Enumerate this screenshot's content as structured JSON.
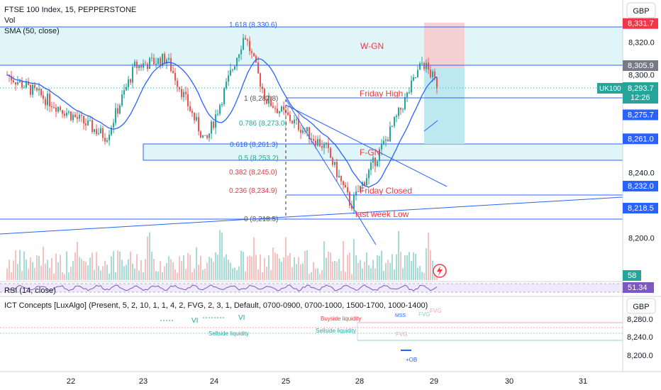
{
  "header": {
    "title": "FTSE 100 Index, 15, PEPPERSTONE",
    "vol_label": "Vol",
    "sma_label": "SMA (50, close)",
    "currency": "GBP"
  },
  "rsi": {
    "label": "RSI (14, close)",
    "values": [
      "58",
      "51.34"
    ]
  },
  "ict": {
    "title": "ICT Concepts [LuxAlgo] (Present, 5, 2, 10, 1, 1, 4, 2, FVG, 2, 3, 1, Default, 0700-0900, 0700-1000, 1500-1700, 1000-1400)",
    "currency": "GBP",
    "labels": [
      "VI",
      "VI",
      "Buyside liquidity",
      "MSS",
      "FVG",
      "FVG",
      "Sellside liquidity",
      "Sellside liquidity",
      "FVG",
      "+OB"
    ],
    "axis": [
      "8,280.0",
      "8,240.0",
      "8,200.0"
    ]
  },
  "symbol_badge": {
    "name": "UK100",
    "price": "8,293.7",
    "countdown": "12:26"
  },
  "chart_data": {
    "type": "candlestick",
    "title": "FTSE 100 Index, 15, PEPPERSTONE",
    "ylim": [
      8190,
      8345
    ],
    "y_ticks": [
      "8,320.0",
      "8,300.0",
      "8,240.0",
      "8,200.0"
    ],
    "x_ticks": [
      "22",
      "23",
      "24",
      "25",
      "28",
      "29",
      "30",
      "31"
    ],
    "price_levels": [
      {
        "label": "8,331.7",
        "value": 8331.7,
        "color": "#f23645"
      },
      {
        "label": "8,305.9",
        "value": 8305.9,
        "color": "#787b86"
      },
      {
        "label": "8,287.8",
        "value": 8287.8,
        "color": "#2962ff"
      },
      {
        "label": "8,275.7",
        "value": 8275.7,
        "color": "#2962ff"
      },
      {
        "label": "8,261.0",
        "value": 8261.0,
        "color": "#2962ff"
      },
      {
        "label": "8,232.0",
        "value": 8232.0,
        "color": "#2962ff"
      },
      {
        "label": "8,218.5",
        "value": 8218.5,
        "color": "#2962ff"
      }
    ],
    "fib_levels": [
      {
        "label": "1.618 (8,330.6)",
        "value": 8330.6
      },
      {
        "label": "1 (8,287.8)",
        "value": 8287.8
      },
      {
        "label": "0.786 (8,273.0)",
        "value": 8273.0
      },
      {
        "label": "0.618 (8,261.3)",
        "value": 8261.3
      },
      {
        "label": "0.5 (8,253.2)",
        "value": 8253.2
      },
      {
        "label": "0.382 (8,245.0)",
        "value": 8245.0
      },
      {
        "label": "0.236 (8,234.9)",
        "value": 8234.9
      },
      {
        "label": "0 (8,218.5)",
        "value": 8218.5
      }
    ],
    "annotations": [
      "W-GN",
      "Friday High",
      "F-GN",
      "Friday Closed",
      "last week Low"
    ],
    "price_path": [
      {
        "day": "22",
        "price": 8300
      },
      {
        "day": "22",
        "price": 8262
      },
      {
        "day": "23",
        "price": 8305
      },
      {
        "day": "23",
        "price": 8310
      },
      {
        "day": "24",
        "price": 8258
      },
      {
        "day": "24",
        "price": 8325
      },
      {
        "day": "25",
        "price": 8285
      },
      {
        "day": "25",
        "price": 8255
      },
      {
        "day": "28",
        "price": 8220
      },
      {
        "day": "28",
        "price": 8265
      },
      {
        "day": "29",
        "price": 8308
      },
      {
        "day": "29",
        "price": 8293.7
      }
    ],
    "colors": {
      "up": "#26a69a",
      "down": "#ef5350",
      "sma": "#2962ff",
      "level": "#2962ff"
    }
  }
}
